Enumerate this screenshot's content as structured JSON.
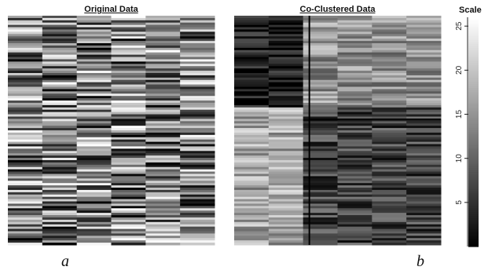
{
  "panels": [
    {
      "id": "a",
      "title": "Original Data",
      "letter": "a"
    },
    {
      "id": "b",
      "title": "Co-Clustered Data",
      "letter": "b"
    }
  ],
  "scale": {
    "label": "Scale",
    "min": 0,
    "max": 26,
    "ticks": [
      5,
      10,
      15,
      20,
      25
    ],
    "colormap": "grayscale (low = black, high = white)"
  },
  "chart_data": [
    {
      "type": "heatmap",
      "title": "Original Data",
      "n_rows": 100,
      "n_cols": 6,
      "value_range": [
        0,
        26
      ],
      "description_of_values": "unordered grayscale values, no visible block structure"
    },
    {
      "type": "heatmap",
      "title": "Co-Clustered Data",
      "n_rows": 100,
      "n_cols": 6,
      "value_range": [
        0,
        26
      ],
      "column_split_after": 2,
      "row_split_fraction_from_top": 0.4,
      "block_means": {
        "top_left": 3,
        "top_right": 15,
        "bottom_left": 17,
        "bottom_right": 7
      }
    }
  ]
}
